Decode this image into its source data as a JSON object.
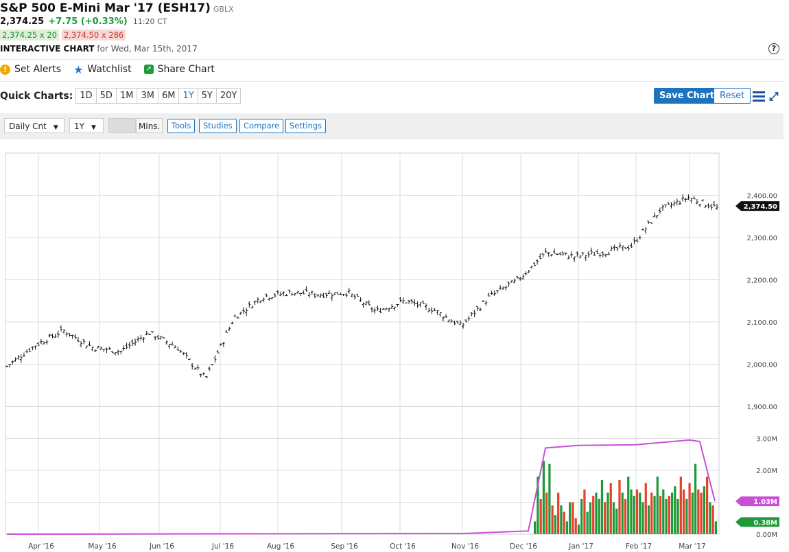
{
  "header": {
    "title": "S&P 500 E-Mini Mar '17 (ESH17)",
    "exchange": "GBLX",
    "last_price": "2,374.25",
    "change": "+7.75 (+0.33%)",
    "time": "11:20 CT",
    "bid": "2,374.25 x 20",
    "ask": "2,374.50 x 286",
    "interactive_label": "INTERACTIVE CHART",
    "interactive_date": "for Wed, Mar 15th, 2017",
    "help_icon": "?"
  },
  "actions": {
    "set_alerts": "Set Alerts",
    "watchlist": "Watchlist",
    "share_chart": "Share Chart",
    "icons": [
      "alert-icon",
      "star-icon",
      "share-icon"
    ]
  },
  "quick_charts": {
    "label": "Quick Charts:",
    "ranges": [
      "1D",
      "5D",
      "1M",
      "3M",
      "6M",
      "1Y",
      "5Y",
      "20Y"
    ],
    "active": "1Y"
  },
  "buttons": {
    "save_chart": "Save Chart",
    "reset": "Reset"
  },
  "toolbar": {
    "chart_type": "Daily Cnt",
    "period": "1Y",
    "mins_label": "Mins.",
    "tools": "Tools",
    "studies": "Studies",
    "compare": "Compare",
    "settings": "Settings"
  },
  "colors": {
    "accent": "#1e73be",
    "up": "#1e9a3a",
    "down": "#e8412a",
    "open_interest": "#c94fd6"
  },
  "chart_data": [
    {
      "type": "bar",
      "subtype": "ohlc",
      "title": "",
      "x_labels": [
        "Apr '16",
        "May '16",
        "Jun '16",
        "Jul '16",
        "Aug '16",
        "Sep '16",
        "Oct '16",
        "Nov '16",
        "Dec '16",
        "Jan '17",
        "Feb '17",
        "Mar '17"
      ],
      "y_ticks": [
        "2,400.00",
        "2,300.00",
        "2,200.00",
        "2,100.00",
        "2,000.00",
        "1,900.00"
      ],
      "ylim": [
        1900,
        2500
      ],
      "last_value_label": "2,374.50",
      "grid": true,
      "monthly_path": [
        {
          "x": "Mar '16",
          "y": 1995
        },
        {
          "x": "Apr '16",
          "y": 2045
        },
        {
          "x": "Apr '16",
          "y": 2080
        },
        {
          "x": "May '16",
          "y": 2040
        },
        {
          "x": "May '16",
          "y": 2030
        },
        {
          "x": "Jun '16",
          "y": 2075
        },
        {
          "x": "Jun '16",
          "y": 2040
        },
        {
          "x": "Jun '16",
          "y": 1965
        },
        {
          "x": "Jul '16",
          "y": 2110
        },
        {
          "x": "Jul '16",
          "y": 2160
        },
        {
          "x": "Aug '16",
          "y": 2170
        },
        {
          "x": "Aug '16",
          "y": 2165
        },
        {
          "x": "Sep '16",
          "y": 2170
        },
        {
          "x": "Sep '16",
          "y": 2125
        },
        {
          "x": "Oct '16",
          "y": 2150
        },
        {
          "x": "Oct '16",
          "y": 2130
        },
        {
          "x": "Nov '16",
          "y": 2090
        },
        {
          "x": "Nov '16",
          "y": 2160
        },
        {
          "x": "Dec '16",
          "y": 2200
        },
        {
          "x": "Dec '16",
          "y": 2265
        },
        {
          "x": "Jan '17",
          "y": 2255
        },
        {
          "x": "Jan '17",
          "y": 2265
        },
        {
          "x": "Feb '17",
          "y": 2280
        },
        {
          "x": "Feb '17",
          "y": 2365
        },
        {
          "x": "Mar '17",
          "y": 2395
        },
        {
          "x": "Mar '17",
          "y": 2370
        }
      ]
    },
    {
      "type": "bar",
      "subtype": "volume_with_open_interest",
      "y_ticks": [
        "3.00M",
        "2.00M",
        "1.00M",
        "0.00M"
      ],
      "ylim": [
        0,
        4
      ],
      "open_interest_label": "1.03M",
      "volume_label": "0.38M",
      "volume_millions": [
        0.4,
        1.8,
        1.1,
        2.3,
        1.3,
        2.2,
        0.9,
        0.6,
        1.3,
        0.9,
        0.7,
        0.4,
        1.0,
        1.0,
        0.5,
        0.3,
        1.1,
        1.4,
        0.7,
        1.0,
        1.2,
        1.3,
        1.1,
        1.7,
        1.0,
        1.3,
        1.6,
        1.0,
        0.8,
        1.7,
        1.3,
        1.1,
        1.8,
        1.4,
        1.2,
        1.4,
        1.3,
        1.0,
        1.6,
        0.9,
        1.3,
        1.2,
        1.8,
        1.2,
        1.4,
        1.1,
        1.2,
        1.3,
        1.5,
        1.1,
        1.8,
        1.4,
        1.1,
        1.6,
        1.3,
        2.2,
        1.4,
        1.3,
        1.5,
        1.8,
        1.0,
        0.9,
        0.4
      ],
      "volume_direction": [
        "up",
        "up",
        "down",
        "up",
        "down",
        "up",
        "down",
        "up",
        "down",
        "up",
        "down",
        "up",
        "up",
        "down",
        "down",
        "up",
        "up",
        "down",
        "up",
        "up",
        "down",
        "up",
        "up",
        "up",
        "down",
        "up",
        "down",
        "up",
        "up",
        "down",
        "up",
        "down",
        "up",
        "up",
        "up",
        "down",
        "up",
        "up",
        "down",
        "up",
        "down",
        "up",
        "up",
        "down",
        "up",
        "up",
        "down",
        "up",
        "up",
        "up",
        "down",
        "down",
        "up",
        "down",
        "up",
        "up",
        "down",
        "down",
        "up",
        "down",
        "up",
        "down",
        "up"
      ],
      "open_interest_path": [
        {
          "x": "Mar '16",
          "y": 0.0
        },
        {
          "x": "Nov '16",
          "y": 0.02
        },
        {
          "x": "Dec '16",
          "y": 0.1
        },
        {
          "x": "Dec '16",
          "y": 2.7
        },
        {
          "x": "Jan '17",
          "y": 2.78
        },
        {
          "x": "Feb '17",
          "y": 2.8
        },
        {
          "x": "Mar '17",
          "y": 2.95
        },
        {
          "x": "Mar '17",
          "y": 2.9
        },
        {
          "x": "Mar '17",
          "y": 1.03
        }
      ]
    }
  ]
}
